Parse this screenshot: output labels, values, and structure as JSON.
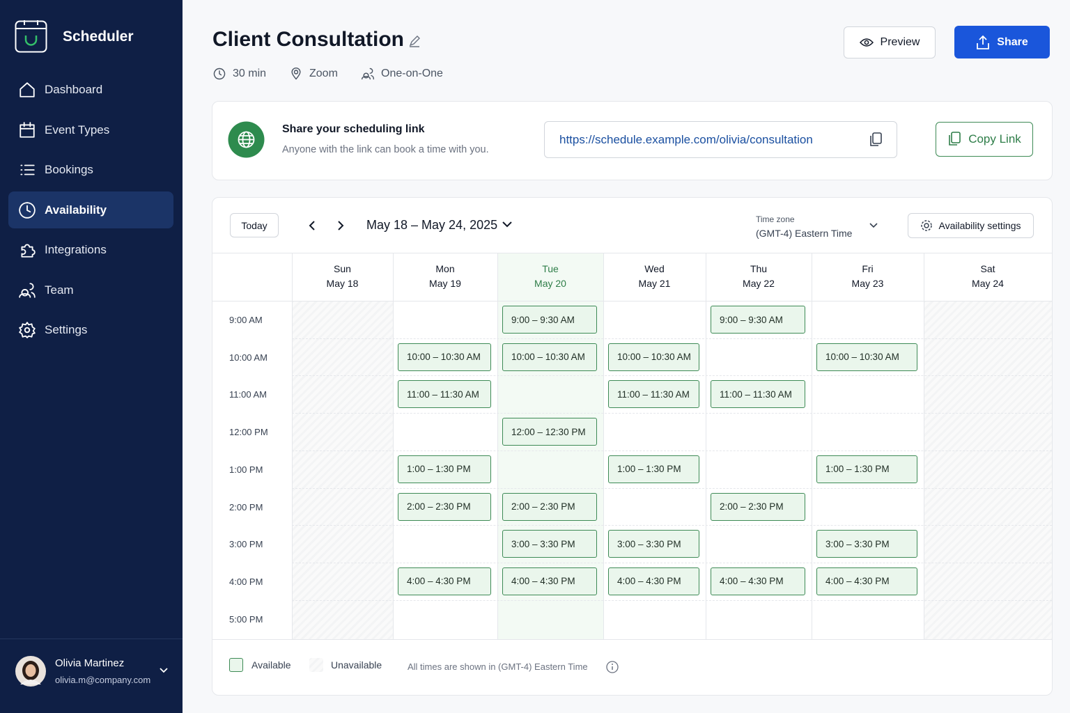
{
  "sidebar": {
    "brand": "Scheduler",
    "nav": [
      {
        "label": "Dashboard",
        "active": false
      },
      {
        "label": "Event Types",
        "active": false
      },
      {
        "label": "Bookings",
        "active": false
      },
      {
        "label": "Availability",
        "active": true
      },
      {
        "label": "Integrations",
        "active": false
      },
      {
        "label": "Team",
        "active": false
      },
      {
        "label": "Settings",
        "active": false
      }
    ],
    "user": {
      "name": "Olivia Martinez",
      "email": "olivia.m@company.com"
    }
  },
  "header": {
    "title": "Client Consultation",
    "meta": [
      "30 min",
      "Zoom",
      "One-on-One"
    ],
    "preview": "Preview",
    "share": "Share"
  },
  "share_link": {
    "title": "Share your scheduling link",
    "subtitle": "Anyone with the link can book a time with you.",
    "url": "https://schedule.example.com/olivia/consultation",
    "copy": "Copy Link"
  },
  "calendar": {
    "today": "Today",
    "range": "May 18 – May 24, 2025",
    "timezone_label": "Time zone",
    "timezone": "(GMT-4) Eastern Time",
    "settings": "Availability settings",
    "times": [
      "9:00 AM",
      "10:00 AM",
      "11:00 AM",
      "12:00 PM",
      "1:00 PM",
      "2:00 PM",
      "3:00 PM",
      "4:00 PM",
      "5:00 PM"
    ],
    "days": [
      {
        "name": "Sun",
        "date": "May 18",
        "today": false,
        "available": false,
        "slots": [
          null,
          null,
          null,
          null,
          null,
          null,
          null,
          null,
          null
        ]
      },
      {
        "name": "Mon",
        "date": "May 19",
        "today": false,
        "available": true,
        "slots": [
          null,
          "10:00 – 10:30 AM",
          "11:00 – 11:30 AM",
          null,
          "1:00 – 1:30 PM",
          "2:00 – 2:30 PM",
          null,
          "4:00 – 4:30 PM",
          null
        ]
      },
      {
        "name": "Tue",
        "date": "May 20",
        "today": true,
        "available": true,
        "slots": [
          "9:00 – 9:30 AM",
          "10:00 – 10:30 AM",
          null,
          "12:00 – 12:30 PM",
          null,
          "2:00 – 2:30 PM",
          "3:00 – 3:30 PM",
          "4:00 – 4:30 PM",
          null
        ]
      },
      {
        "name": "Wed",
        "date": "May 21",
        "today": false,
        "available": true,
        "slots": [
          null,
          "10:00 – 10:30 AM",
          "11:00 – 11:30 AM",
          null,
          "1:00 – 1:30 PM",
          null,
          "3:00 – 3:30 PM",
          "4:00 – 4:30 PM",
          null
        ]
      },
      {
        "name": "Thu",
        "date": "May 22",
        "today": false,
        "available": true,
        "slots": [
          "9:00 – 9:30 AM",
          null,
          "11:00 – 11:30 AM",
          null,
          null,
          "2:00 – 2:30 PM",
          null,
          "4:00 – 4:30 PM",
          null
        ]
      },
      {
        "name": "Fri",
        "date": "May 23",
        "today": false,
        "available": true,
        "slots": [
          null,
          "10:00 – 10:30 AM",
          null,
          null,
          "1:00 – 1:30 PM",
          null,
          "3:00 – 3:30 PM",
          "4:00 – 4:30 PM",
          null
        ]
      },
      {
        "name": "Sat",
        "date": "May 24",
        "today": false,
        "available": false,
        "slots": [
          null,
          null,
          null,
          null,
          null,
          null,
          null,
          null,
          null
        ]
      }
    ]
  },
  "legend": {
    "available": "Available",
    "unavailable": "Unavailable",
    "note": "All times are shown in (GMT-4) Eastern Time"
  }
}
